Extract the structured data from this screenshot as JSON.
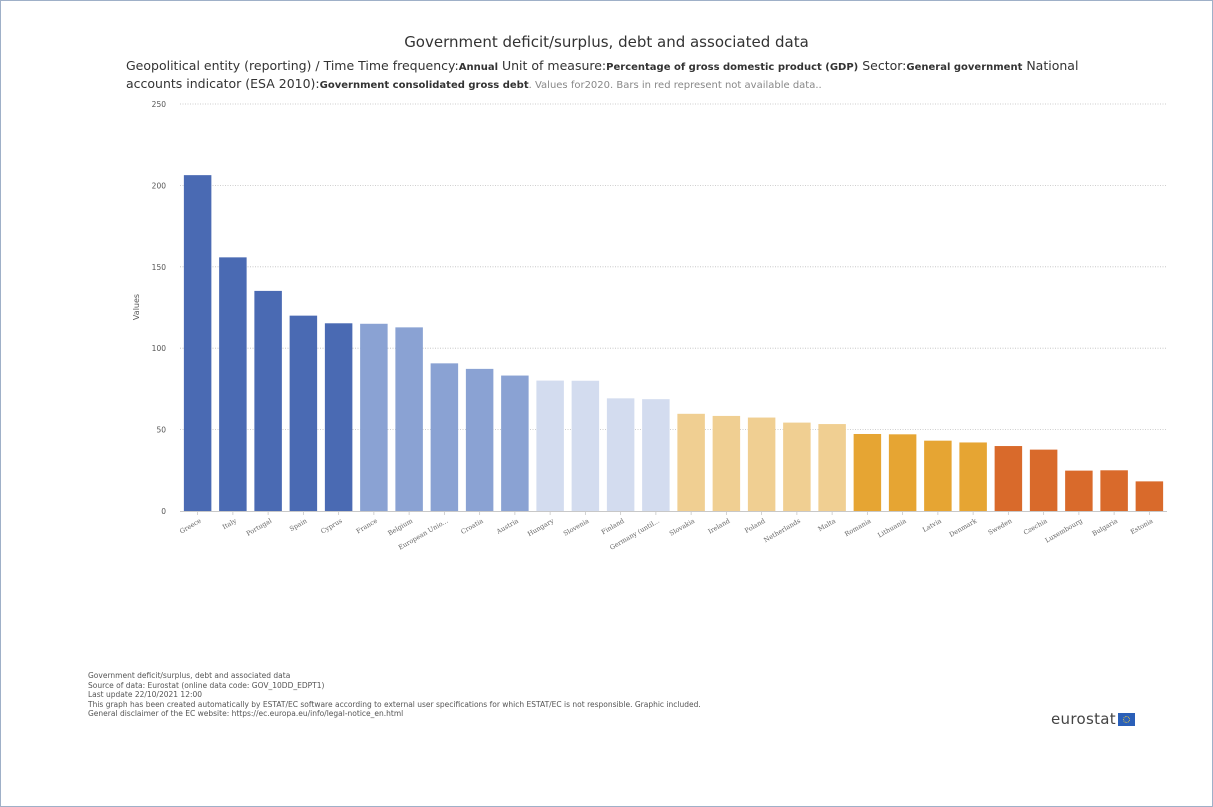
{
  "chart_data": {
    "type": "bar",
    "title": "Government deficit/surplus, debt and associated data",
    "subtitle": {
      "p1": "Geopolitical entity (reporting) / Time  Time frequency:",
      "freq": "Annual",
      "p2": "  Unit of measure:",
      "unit": "Percentage of gross domestic product (GDP)",
      "p3": "  Sector:",
      "sector": "General government",
      "p4": "  National accounts indicator (ESA 2010):",
      "indicator": "Government consolidated gross debt",
      "p5": ". Values for2020. Bars in red represent not available data.."
    },
    "ylabel": "Values",
    "xlabel": "",
    "ylim": [
      0,
      250
    ],
    "yticks": [
      0,
      50,
      100,
      150,
      200,
      250
    ],
    "grid": true,
    "categories": [
      "Greece",
      "Italy",
      "Portugal",
      "Spain",
      "Cyprus",
      "France",
      "Belgium",
      "European Unio...",
      "Croatia",
      "Austria",
      "Hungary",
      "Slovenia",
      "Finland",
      "Germany (until...",
      "Slovakia",
      "Ireland",
      "Poland",
      "Netherlands",
      "Malta",
      "Romania",
      "Lithuania",
      "Latvia",
      "Denmark",
      "Sweden",
      "Czechia",
      "Luxembourg",
      "Bulgaria",
      "Estonia"
    ],
    "values": [
      206.3,
      155.8,
      135.2,
      120.0,
      115.3,
      115.0,
      112.8,
      90.7,
      87.3,
      83.2,
      80.1,
      80.0,
      69.2,
      68.7,
      59.7,
      58.4,
      57.4,
      54.3,
      53.4,
      47.3,
      47.1,
      43.2,
      42.1,
      39.9,
      37.7,
      24.8,
      25.0,
      18.2
    ],
    "colors": [
      "#4a6ab3",
      "#4a6ab3",
      "#4a6ab3",
      "#4a6ab3",
      "#4a6ab3",
      "#8aa2d3",
      "#8aa2d3",
      "#8aa2d3",
      "#8aa2d3",
      "#8aa2d3",
      "#d3dcef",
      "#d3dcef",
      "#d3dcef",
      "#d3dcef",
      "#f0cf92",
      "#f0cf92",
      "#f0cf92",
      "#f0cf92",
      "#f0cf92",
      "#e6a533",
      "#e6a533",
      "#e6a533",
      "#e6a533",
      "#d96a2b",
      "#d96a2b",
      "#d96a2b",
      "#d96a2b",
      "#d96a2b"
    ]
  },
  "footer": {
    "line1": "Government deficit/surplus, debt and associated data",
    "line2": "Source of data: Eurostat (online data code: GOV_10DD_EDPT1)",
    "line3": "Last update 22/10/2021 12:00",
    "line4": "This graph has been created automatically by ESTAT/EC software according to external user specifications for which ESTAT/EC is not responsible. Graphic included.",
    "line5": "General disclaimer of the EC website: https://ec.europa.eu/info/legal-notice_en.html"
  },
  "logo": {
    "text": "eurostat",
    "icon": "eu-flag-icon"
  }
}
